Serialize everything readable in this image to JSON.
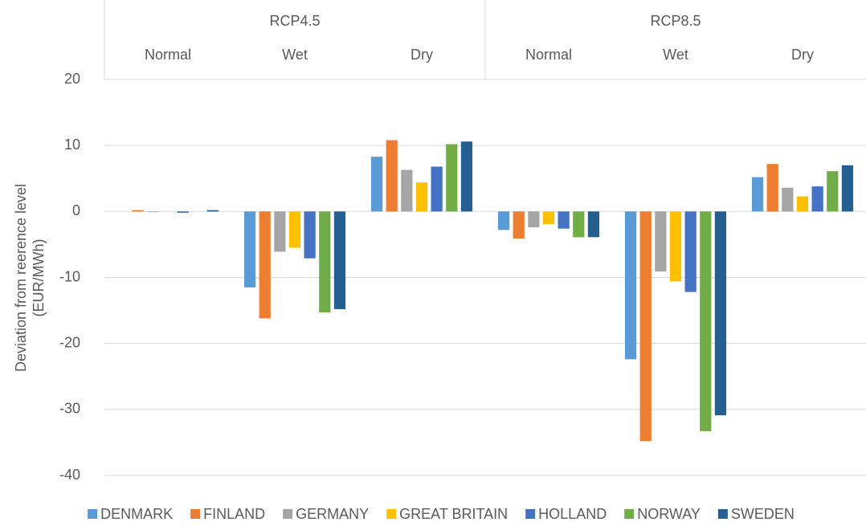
{
  "chart_data": {
    "type": "bar",
    "category_groups": [
      {
        "name": "RCP4.5",
        "categories": [
          "Normal",
          "Wet",
          "Dry"
        ]
      },
      {
        "name": "RCP8.5",
        "categories": [
          "Normal",
          "Wet",
          "Dry"
        ]
      }
    ],
    "y_label": [
      "Deviation from reerence level",
      "(EUR/MWh)"
    ],
    "ylim": [
      -40,
      20
    ],
    "yticks": [
      -40,
      -30,
      -20,
      -10,
      0,
      10,
      20
    ],
    "grid": true,
    "legend": "bottom",
    "series": [
      {
        "name": "DENMARK",
        "color": "#5b9bd5",
        "values": [
          0,
          -11.5,
          8.3,
          -2.8,
          -22.4,
          5.2
        ]
      },
      {
        "name": "FINLAND",
        "color": "#ed7d31",
        "values": [
          0.2,
          -16.2,
          10.8,
          -4.1,
          -34.8,
          7.2
        ]
      },
      {
        "name": "GERMANY",
        "color": "#a5a5a5",
        "values": [
          -0.1,
          -6.1,
          6.3,
          -2.4,
          -9.1,
          3.6
        ]
      },
      {
        "name": "GREAT BRITAIN",
        "color": "#ffc000",
        "values": [
          0,
          -5.5,
          4.4,
          -1.9,
          -10.6,
          2.3
        ]
      },
      {
        "name": "HOLLAND",
        "color": "#4472c4",
        "values": [
          -0.2,
          -7.1,
          6.8,
          -2.6,
          -12.2,
          3.8
        ]
      },
      {
        "name": "NORWAY",
        "color": "#70ad47",
        "values": [
          0,
          -15.3,
          10.2,
          -3.9,
          -33.3,
          6.1
        ]
      },
      {
        "name": "SWEDEN",
        "color": "#255e91",
        "values": [
          0.2,
          -14.8,
          10.6,
          -3.9,
          -30.9,
          7.0
        ]
      }
    ]
  }
}
